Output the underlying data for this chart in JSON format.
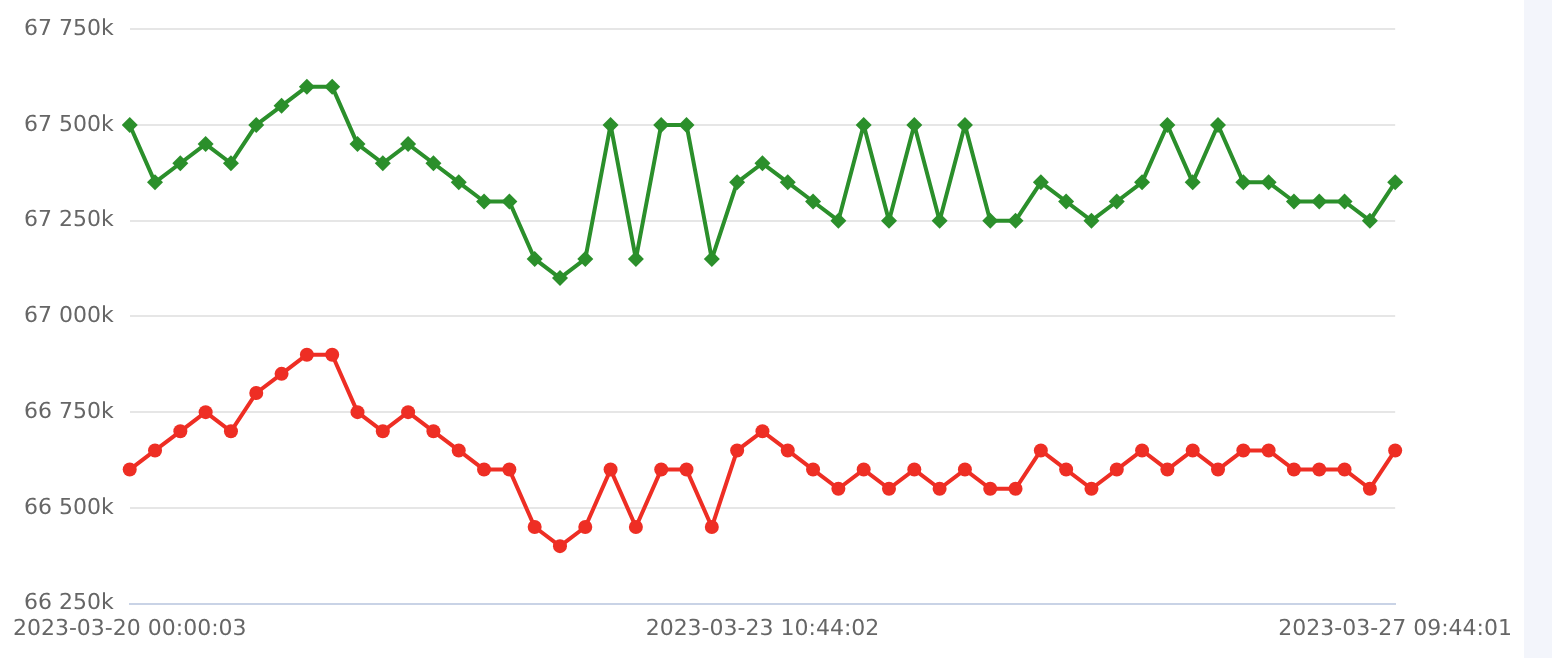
{
  "chart_data": {
    "type": "line",
    "categories": [
      "2023-03-20 00:00:03",
      null,
      null,
      null,
      null,
      null,
      null,
      null,
      null,
      null,
      null,
      null,
      null,
      null,
      null,
      null,
      null,
      null,
      null,
      null,
      null,
      null,
      null,
      null,
      null,
      "2023-03-23 10:44:02",
      null,
      null,
      null,
      null,
      null,
      null,
      null,
      null,
      null,
      null,
      null,
      null,
      null,
      null,
      null,
      null,
      null,
      null,
      null,
      null,
      null,
      null,
      null,
      null,
      "2023-03-27 09:44:01"
    ],
    "series": [
      {
        "color": "#2b8f2b",
        "marker": "diamond",
        "values": [
          67500,
          67350,
          67400,
          67450,
          67400,
          67500,
          67550,
          67600,
          67600,
          67450,
          67400,
          67450,
          67400,
          67350,
          67300,
          67300,
          67150,
          67100,
          67150,
          67500,
          67150,
          67500,
          67500,
          67150,
          67350,
          67400,
          67350,
          67300,
          67250,
          67500,
          67250,
          67500,
          67250,
          67500,
          67250,
          67250,
          67350,
          67300,
          67250,
          67300,
          67350,
          67500,
          67350,
          67500,
          67350,
          67350,
          67300,
          67300,
          67300,
          67250,
          67350
        ]
      },
      {
        "color": "#ee2e24",
        "marker": "circle",
        "values": [
          66600,
          66650,
          66700,
          66750,
          66700,
          66800,
          66850,
          66900,
          66900,
          66750,
          66700,
          66750,
          66700,
          66650,
          66600,
          66600,
          66450,
          66400,
          66450,
          66600,
          66450,
          66600,
          66600,
          66450,
          66650,
          66700,
          66650,
          66600,
          66550,
          66600,
          66550,
          66600,
          66550,
          66600,
          66550,
          66550,
          66650,
          66600,
          66550,
          66600,
          66650,
          66600,
          66650,
          66600,
          66650,
          66650,
          66600,
          66600,
          66600,
          66550,
          66650
        ]
      }
    ],
    "ylim": [
      66250,
      67750
    ],
    "yticks": [
      {
        "value": 66250,
        "label": "66 250k"
      },
      {
        "value": 66500,
        "label": "66 500k"
      },
      {
        "value": 66750,
        "label": "66 750k"
      },
      {
        "value": 67000,
        "label": "67 000k"
      },
      {
        "value": 67250,
        "label": "67 250k"
      },
      {
        "value": 67500,
        "label": "67 500k"
      },
      {
        "value": 67750,
        "label": "67 750k"
      }
    ],
    "grid": "y",
    "legend": false,
    "line_style": "solid"
  }
}
